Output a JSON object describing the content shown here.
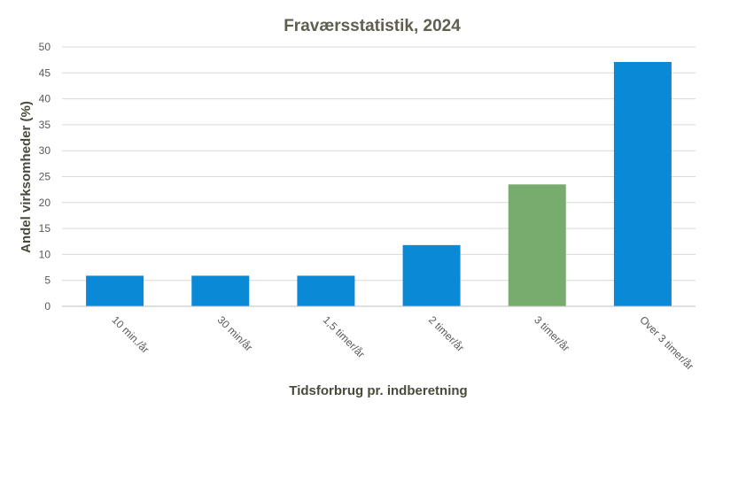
{
  "chart_data": {
    "type": "bar",
    "title": "Fraværsstatistik,  2024",
    "xlabel": "Tidsforbrug pr. indberetning",
    "ylabel": "Andel virksomheder  (%)",
    "categories": [
      "10 min./år",
      "30 min/år",
      "1,5 timer/år",
      "2 timer/år",
      "3 timer/år",
      "Over 3 timer/år"
    ],
    "values": [
      5.9,
      5.9,
      5.9,
      11.8,
      23.5,
      47.1
    ],
    "bar_colors": [
      "#0a8ad6",
      "#0a8ad6",
      "#0a8ad6",
      "#0a8ad6",
      "#78ab6e",
      "#0a8ad6"
    ],
    "ylim": [
      0,
      50
    ],
    "yticks": [
      0,
      5,
      10,
      15,
      20,
      25,
      30,
      35,
      40,
      45,
      50
    ],
    "grid": true,
    "legend": "none"
  }
}
